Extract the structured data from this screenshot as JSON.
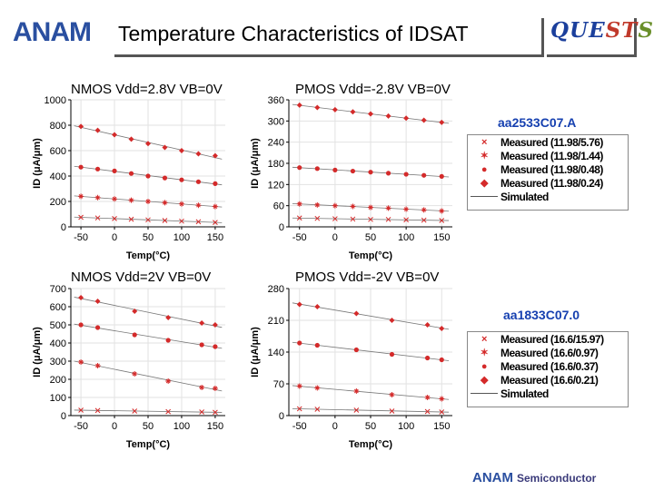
{
  "header": {
    "logo_text": "ANAM",
    "title": "Temperature Characteristics of IDSAT",
    "quests_parts": [
      "QUE",
      "ST",
      "S"
    ]
  },
  "footer": {
    "brand": "ANAM",
    "subtitle": "Semiconductor"
  },
  "devices": [
    "aa2533C07.A",
    "aa1833C07.0"
  ],
  "legends": [
    {
      "measured_label": "Measured",
      "simulated_label": "Simulated",
      "items": [
        "(11.98/5.76)",
        "(11.98/1.44)",
        "(11.98/0.48)",
        "(11.98/0.24)"
      ]
    },
    {
      "measured_label": "Measured",
      "simulated_label": "Simulated",
      "items": [
        "(16.6/15.97)",
        "(16.6/0.97)",
        "(16.6/0.37)",
        "(16.6/0.21)"
      ]
    }
  ],
  "colors": {
    "marker": "#d42a2a",
    "line": "#777777",
    "axis": "#000000",
    "grid": "#e2e2e2"
  },
  "chart_data": [
    {
      "type": "scatter",
      "title": "NMOS Vdd=2.8V VB=0V",
      "xlabel": "Temp(°C)",
      "ylabel": "ID (μA/μm)",
      "xlim": [
        -65,
        165
      ],
      "ylim": [
        0,
        1000
      ],
      "xticks": [
        -50,
        0,
        50,
        100,
        150
      ],
      "yticks": [
        0,
        200,
        400,
        600,
        800,
        1000
      ],
      "x": [
        -50,
        -25,
        0,
        25,
        50,
        75,
        100,
        125,
        150
      ],
      "series": [
        {
          "name": "Measured (11.98/5.76)",
          "values": [
            790,
            760,
            725,
            690,
            655,
            625,
            600,
            575,
            560
          ]
        },
        {
          "name": "Measured (11.98/1.44)",
          "values": [
            470,
            455,
            440,
            420,
            400,
            385,
            370,
            355,
            340
          ]
        },
        {
          "name": "Measured (11.98/0.48)",
          "values": [
            240,
            230,
            220,
            210,
            200,
            190,
            180,
            170,
            160
          ]
        },
        {
          "name": "Measured (11.98/0.24)",
          "values": [
            75,
            70,
            65,
            60,
            55,
            50,
            45,
            40,
            35
          ]
        }
      ]
    },
    {
      "type": "scatter",
      "title": "PMOS Vdd=-2.8V VB=0V",
      "xlabel": "Temp(°C)",
      "ylabel": "ID (μA/μm)",
      "xlim": [
        -65,
        165
      ],
      "ylim": [
        0,
        360
      ],
      "xticks": [
        -50,
        0,
        50,
        100,
        150
      ],
      "yticks": [
        0,
        60,
        120,
        180,
        240,
        300,
        360
      ],
      "x": [
        -50,
        -25,
        0,
        25,
        50,
        75,
        100,
        125,
        150
      ],
      "series": [
        {
          "name": "Measured (11.98/5.76)",
          "values": [
            345,
            338,
            332,
            326,
            320,
            314,
            308,
            302,
            296
          ]
        },
        {
          "name": "Measured (11.98/1.44)",
          "values": [
            168,
            165,
            161,
            158,
            155,
            152,
            149,
            146,
            143
          ]
        },
        {
          "name": "Measured (11.98/0.48)",
          "values": [
            65,
            62,
            60,
            58,
            55,
            53,
            50,
            48,
            45
          ]
        },
        {
          "name": "Measured (11.98/0.24)",
          "values": [
            25,
            24,
            23,
            22,
            21,
            21,
            20,
            19,
            18
          ]
        }
      ]
    },
    {
      "type": "scatter",
      "title": "NMOS Vdd=2V VB=0V",
      "xlabel": "Temp(°C)",
      "ylabel": "ID (μA/μm)",
      "xlim": [
        -65,
        165
      ],
      "ylim": [
        0,
        700
      ],
      "xticks": [
        -50,
        0,
        50,
        100,
        150
      ],
      "yticks": [
        0,
        100,
        200,
        300,
        400,
        500,
        600,
        700
      ],
      "x": [
        -50,
        -25,
        30,
        80,
        130,
        150
      ],
      "series": [
        {
          "name": "Measured (16.6/15.97)",
          "values": [
            650,
            630,
            575,
            540,
            510,
            500
          ]
        },
        {
          "name": "Measured (16.6/0.97)",
          "values": [
            500,
            485,
            445,
            415,
            390,
            380
          ]
        },
        {
          "name": "Measured (16.6/0.37)",
          "values": [
            295,
            275,
            230,
            190,
            155,
            150
          ]
        },
        {
          "name": "Measured (16.6/0.21)",
          "values": [
            30,
            28,
            25,
            22,
            20,
            18
          ]
        }
      ]
    },
    {
      "type": "scatter",
      "title": "PMOS Vdd=-2V VB=0V",
      "xlabel": "Temp(°C)",
      "ylabel": "ID (μA/μm)",
      "xlim": [
        -65,
        165
      ],
      "ylim": [
        0,
        280
      ],
      "xticks": [
        -50,
        0,
        50,
        100,
        150
      ],
      "yticks": [
        0,
        70,
        140,
        210,
        280
      ],
      "x": [
        -50,
        -25,
        30,
        80,
        130,
        150
      ],
      "series": [
        {
          "name": "Measured (16.6/15.97)",
          "values": [
            245,
            240,
            225,
            210,
            200,
            192
          ]
        },
        {
          "name": "Measured (16.6/0.97)",
          "values": [
            160,
            155,
            145,
            135,
            127,
            123
          ]
        },
        {
          "name": "Measured (16.6/0.37)",
          "values": [
            65,
            61,
            54,
            46,
            40,
            37
          ]
        },
        {
          "name": "Measured (16.6/0.21)",
          "values": [
            15,
            14,
            12,
            10,
            9,
            8
          ]
        }
      ]
    }
  ]
}
